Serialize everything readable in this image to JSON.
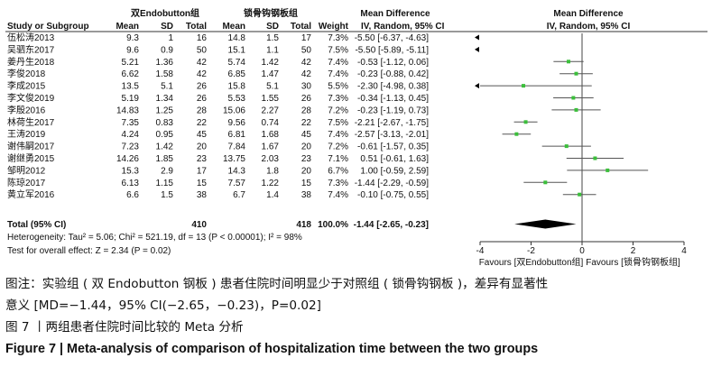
{
  "chart_data": {
    "type": "forest",
    "headers": {
      "group_exp": "双Endobutton组",
      "group_ctl": "锁骨钩钢板组",
      "effect_group": "Mean Difference",
      "study_col": "Study or Subgroup",
      "mean": "Mean",
      "sd": "SD",
      "total": "Total",
      "weight": "Weight",
      "ci_col": "IV, Random, 95% CI",
      "plot_title": "Mean Difference",
      "plot_sub": "IV, Random, 95% CI"
    },
    "studies": [
      {
        "name": "伍松涛2013",
        "m1": "9.3",
        "sd1": "1",
        "n1": "16",
        "m2": "14.8",
        "sd2": "1.5",
        "n2": "17",
        "w": "7.3%",
        "ci": "-5.50 [-6.37, -4.63]",
        "md": -5.5,
        "lo": -6.37,
        "hi": -4.63
      },
      {
        "name": "吴驷东2017",
        "m1": "9.6",
        "sd1": "0.9",
        "n1": "50",
        "m2": "15.1",
        "sd2": "1.1",
        "n2": "50",
        "w": "7.5%",
        "ci": "-5.50 [-5.89, -5.11]",
        "md": -5.5,
        "lo": -5.89,
        "hi": -5.11
      },
      {
        "name": "姜丹生2018",
        "m1": "5.21",
        "sd1": "1.36",
        "n1": "42",
        "m2": "5.74",
        "sd2": "1.42",
        "n2": "42",
        "w": "7.4%",
        "ci": "-0.53 [-1.12, 0.06]",
        "md": -0.53,
        "lo": -1.12,
        "hi": 0.06
      },
      {
        "name": "李俊2018",
        "m1": "6.62",
        "sd1": "1.58",
        "n1": "42",
        "m2": "6.85",
        "sd2": "1.47",
        "n2": "42",
        "w": "7.4%",
        "ci": "-0.23 [-0.88, 0.42]",
        "md": -0.23,
        "lo": -0.88,
        "hi": 0.42
      },
      {
        "name": "李成2015",
        "m1": "13.5",
        "sd1": "5.1",
        "n1": "26",
        "m2": "15.8",
        "sd2": "5.1",
        "n2": "30",
        "w": "5.5%",
        "ci": "-2.30 [-4.98, 0.38]",
        "md": -2.3,
        "lo": -4.98,
        "hi": 0.38
      },
      {
        "name": "李文俊2019",
        "m1": "5.19",
        "sd1": "1.34",
        "n1": "26",
        "m2": "5.53",
        "sd2": "1.55",
        "n2": "26",
        "w": "7.3%",
        "ci": "-0.34 [-1.13, 0.45]",
        "md": -0.34,
        "lo": -1.13,
        "hi": 0.45
      },
      {
        "name": "李殷2016",
        "m1": "14.83",
        "sd1": "1.25",
        "n1": "28",
        "m2": "15.06",
        "sd2": "2.27",
        "n2": "28",
        "w": "7.2%",
        "ci": "-0.23 [-1.19, 0.73]",
        "md": -0.23,
        "lo": -1.19,
        "hi": 0.73
      },
      {
        "name": "林荷生2017",
        "m1": "7.35",
        "sd1": "0.83",
        "n1": "22",
        "m2": "9.56",
        "sd2": "0.74",
        "n2": "22",
        "w": "7.5%",
        "ci": "-2.21 [-2.67, -1.75]",
        "md": -2.21,
        "lo": -2.67,
        "hi": -1.75
      },
      {
        "name": "王涛2019",
        "m1": "4.24",
        "sd1": "0.95",
        "n1": "45",
        "m2": "6.81",
        "sd2": "1.68",
        "n2": "45",
        "w": "7.4%",
        "ci": "-2.57 [-3.13, -2.01]",
        "md": -2.57,
        "lo": -3.13,
        "hi": -2.01
      },
      {
        "name": "谢伟嗣2017",
        "m1": "7.23",
        "sd1": "1.42",
        "n1": "20",
        "m2": "7.84",
        "sd2": "1.67",
        "n2": "20",
        "w": "7.2%",
        "ci": "-0.61 [-1.57, 0.35]",
        "md": -0.61,
        "lo": -1.57,
        "hi": 0.35
      },
      {
        "name": "谢继勇2015",
        "m1": "14.26",
        "sd1": "1.85",
        "n1": "23",
        "m2": "13.75",
        "sd2": "2.03",
        "n2": "23",
        "w": "7.1%",
        "ci": "0.51 [-0.61, 1.63]",
        "md": 0.51,
        "lo": -0.61,
        "hi": 1.63
      },
      {
        "name": "邹明2012",
        "m1": "15.3",
        "sd1": "2.9",
        "n1": "17",
        "m2": "14.3",
        "sd2": "1.8",
        "n2": "20",
        "w": "6.7%",
        "ci": "1.00 [-0.59, 2.59]",
        "md": 1.0,
        "lo": -0.59,
        "hi": 2.59
      },
      {
        "name": "陈琼2017",
        "m1": "6.13",
        "sd1": "1.15",
        "n1": "15",
        "m2": "7.57",
        "sd2": "1.22",
        "n2": "15",
        "w": "7.3%",
        "ci": "-1.44 [-2.29, -0.59]",
        "md": -1.44,
        "lo": -2.29,
        "hi": -0.59
      },
      {
        "name": "黄立军2016",
        "m1": "6.6",
        "sd1": "1.5",
        "n1": "38",
        "m2": "6.7",
        "sd2": "1.4",
        "n2": "38",
        "w": "7.4%",
        "ci": "-0.10 [-0.75, 0.55]",
        "md": -0.1,
        "lo": -0.75,
        "hi": 0.55
      }
    ],
    "total": {
      "label": "Total (95% CI)",
      "n1": "410",
      "n2": "418",
      "w": "100.0%",
      "ci": "-1.44 [-2.65, -0.23]",
      "md": -1.44,
      "lo": -2.65,
      "hi": -0.23
    },
    "heterogeneity": "Heterogeneity: Tau² = 5.06; Chi² = 521.19, df = 13 (P < 0.00001); I² = 98%",
    "overall_test": "Test for overall effect: Z = 2.34 (P = 0.02)",
    "x_axis": {
      "min": -4,
      "max": 4,
      "ticks": [
        -4,
        -2,
        0,
        2,
        4
      ],
      "tick_labels": [
        "-4",
        "-2",
        "0",
        "2",
        "4"
      ],
      "label_left": "Favours [双Endobutton组]",
      "label_right": "Favours [锁骨钩钢板组]"
    },
    "colors": {
      "point": "#3bbf3b",
      "diamond": "#000000",
      "line": "#555555"
    }
  },
  "caption": {
    "line1": "图注：实验组 ( 双 Endobutton 钢板 ) 患者住院时间明显少于对照组 ( 锁骨钩钢板 )，差异有显著性",
    "line2": "意义 [MD=−1.44，95% CI(−2.65，−0.23)，P=0.02]",
    "line3": "图 7 丨两组患者住院时间比较的 Meta 分析",
    "line4": "Figure 7  |  Meta-analysis of comparison of hospitalization time between the two groups"
  }
}
